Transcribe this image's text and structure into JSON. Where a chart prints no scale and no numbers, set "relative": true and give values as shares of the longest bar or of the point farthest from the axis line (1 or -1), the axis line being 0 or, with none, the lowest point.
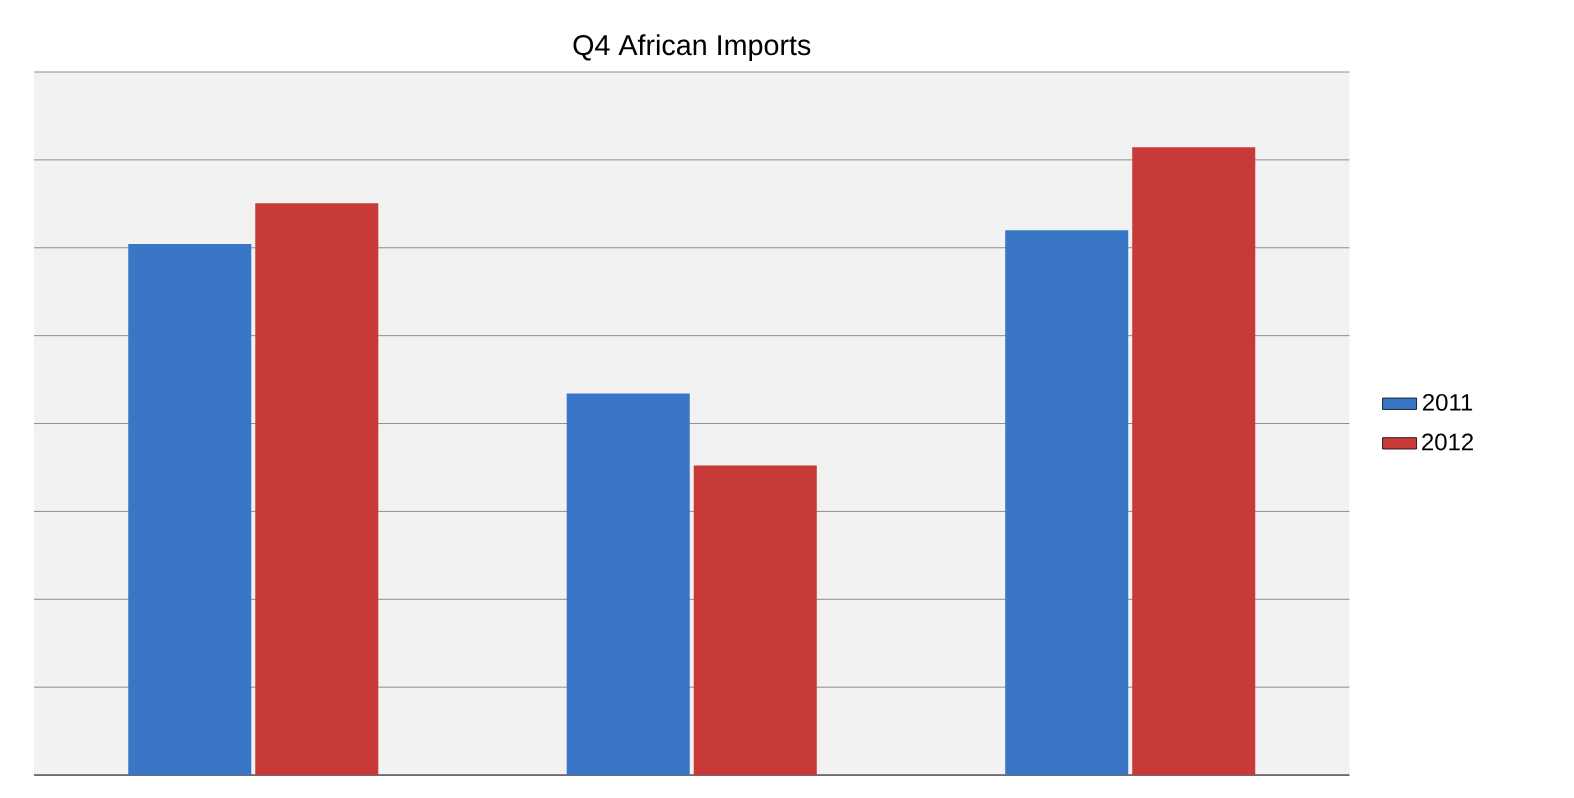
{
  "chart_data": {
    "type": "bar",
    "title": "Q4 African Imports",
    "relative": true,
    "categories": [
      null,
      null,
      null
    ],
    "series": [
      {
        "name": "2011",
        "color": "#3a76c6",
        "values": [
          0.846,
          0.608,
          0.868
        ]
      },
      {
        "name": "2012",
        "color": "#c83a37",
        "values": [
          0.911,
          0.493,
          1
        ]
      }
    ],
    "grid": "y",
    "legend": "right"
  }
}
